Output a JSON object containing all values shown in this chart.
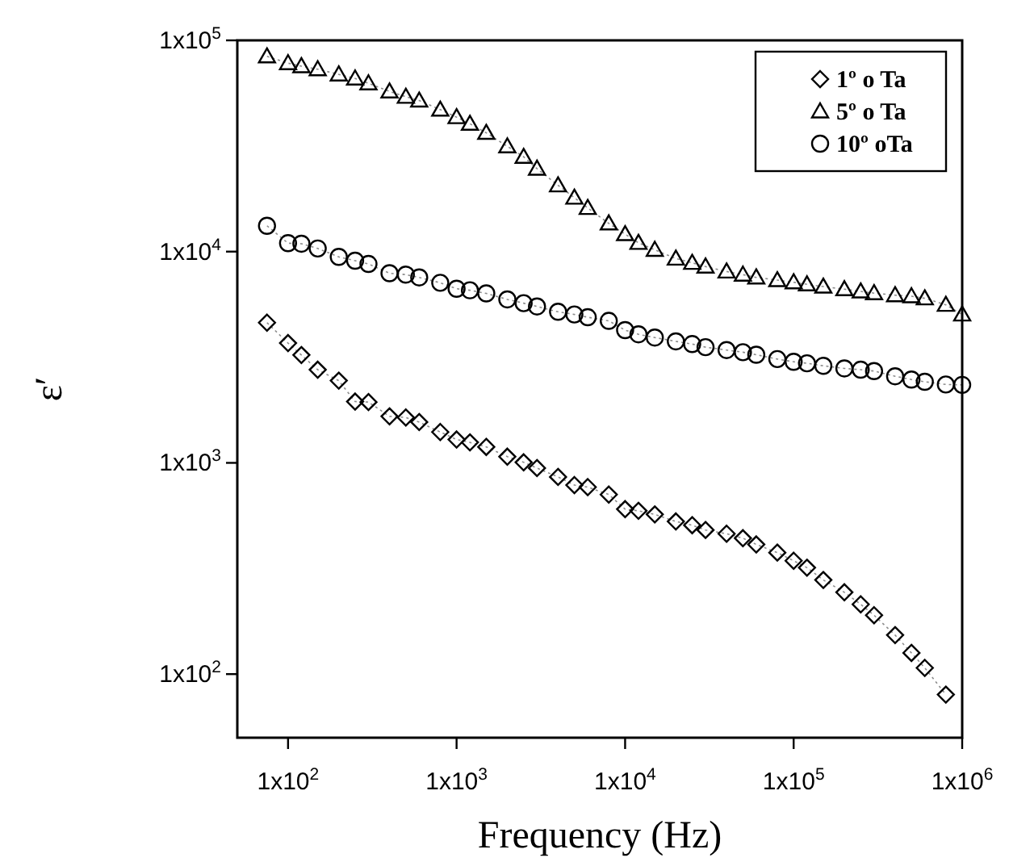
{
  "chart_data": {
    "type": "line",
    "xlabel": "Frequency (Hz)",
    "ylabel": "ε′",
    "log": "xy",
    "grid": false,
    "legend": "top right",
    "line_style": "dotted",
    "x": [
      75,
      100,
      120,
      150,
      200,
      250,
      300,
      400,
      500,
      600,
      800,
      1000,
      1200,
      1500,
      2000,
      2500,
      3000,
      4000,
      5000,
      6000,
      8000,
      10000,
      12000,
      15000,
      20000,
      25000,
      30000,
      40000,
      50000,
      60000,
      80000,
      100000,
      120000,
      150000,
      200000,
      250000,
      300000,
      400000,
      500000,
      600000,
      800000,
      1000000
    ],
    "xlim": [
      50,
      1000000
    ],
    "ylim": [
      50,
      100000
    ],
    "xticks": [
      {
        "value": 100,
        "label": "1x10$^{2}$"
      },
      {
        "value": 1000,
        "label": "1x10$^{3}$"
      },
      {
        "value": 10000,
        "label": "1x10$^{4}$"
      },
      {
        "value": 100000,
        "label": "1x10$^{5}$"
      },
      {
        "value": 1000000,
        "label": "1x10$^{6}$"
      }
    ],
    "yticks": [
      {
        "value": 100,
        "label": "1x10$^{2}$"
      },
      {
        "value": 1000,
        "label": "1x10$^{3}$"
      },
      {
        "value": 10000,
        "label": "1x10$^{4}$"
      },
      {
        "value": 100000,
        "label": "1x10$^{5}$"
      }
    ],
    "series": [
      {
        "name": "1º o Ta",
        "color": "#000000",
        "marker": "diamond",
        "values": [
          4610,
          3690,
          3240,
          2760,
          2450,
          1950,
          1940,
          1660,
          1640,
          1560,
          1400,
          1290,
          1250,
          1190,
          1070,
          1006,
          945,
          858,
          785,
          768,
          708,
          604,
          593,
          570,
          528,
          507,
          481,
          462,
          440,
          411,
          376,
          344,
          319,
          279,
          244,
          214,
          190,
          153,
          126,
          107,
          80,
          null
        ]
      },
      {
        "name": "5º o Ta",
        "color": "#000000",
        "marker": "triangle",
        "values": [
          84000,
          78000,
          75500,
          73000,
          69000,
          66000,
          62600,
          57300,
          54100,
          51900,
          47000,
          43300,
          40300,
          36500,
          31500,
          28100,
          24700,
          20600,
          18000,
          16100,
          13600,
          12100,
          11000,
          10200,
          9270,
          8850,
          8500,
          8050,
          7780,
          7550,
          7330,
          7160,
          7000,
          6830,
          6640,
          6480,
          6360,
          6220,
          6150,
          6010,
          5600,
          5040
        ]
      },
      {
        "name": "10º oTa",
        "color": "#000000",
        "marker": "circle",
        "values": [
          13250,
          10960,
          10900,
          10350,
          9440,
          9060,
          8740,
          7900,
          7780,
          7550,
          7120,
          6670,
          6560,
          6340,
          5940,
          5700,
          5500,
          5190,
          5040,
          4890,
          4700,
          4250,
          4060,
          3920,
          3760,
          3650,
          3530,
          3420,
          3340,
          3250,
          3100,
          3010,
          2960,
          2880,
          2800,
          2760,
          2720,
          2570,
          2480,
          2420,
          2350,
          2340
        ]
      }
    ]
  }
}
